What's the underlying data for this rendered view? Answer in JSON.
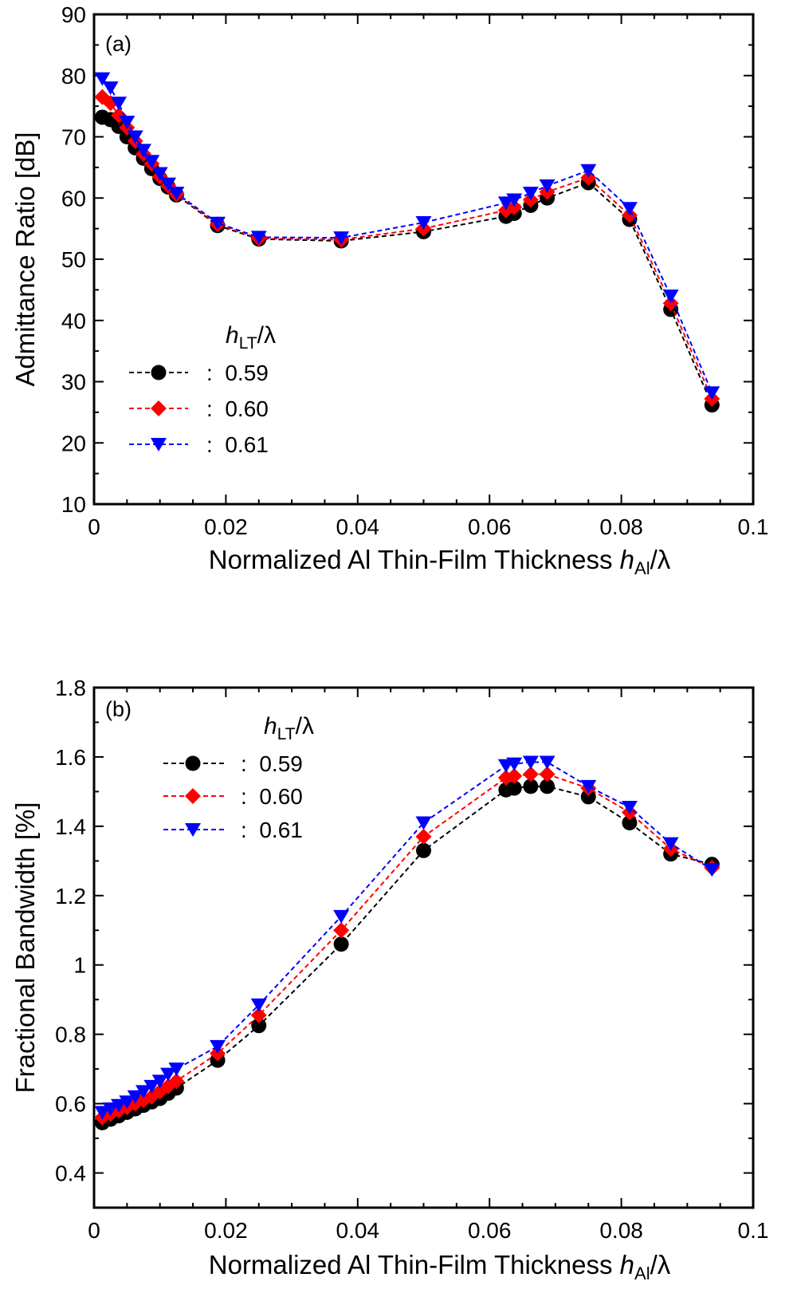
{
  "chart_data": [
    {
      "type": "line",
      "panel_label": "(a)",
      "xlabel_text": "Normalized  Al  Thin-Film  Thickness",
      "xlabel_math": "h",
      "xlabel_math_sub": "Al",
      "xlabel_math_tail": "/λ",
      "ylabel": "Admittance  Ratio  [dB]",
      "xlim": [
        0,
        0.1
      ],
      "ylim": [
        10,
        90
      ],
      "xticks": [
        0,
        0.02,
        0.04,
        0.06,
        0.08,
        0.1
      ],
      "xtick_labels": [
        "0",
        "0.02",
        "0.04",
        "0.06",
        "0.08",
        "0.1"
      ],
      "yticks": [
        10,
        20,
        30,
        40,
        50,
        60,
        70,
        80,
        90
      ],
      "ytick_labels": [
        "10",
        "20",
        "30",
        "40",
        "50",
        "60",
        "70",
        "80",
        "90"
      ],
      "legend_title_main": "h",
      "legend_title_sub": "LT",
      "legend_title_tail": "/λ",
      "x": [
        0.00125,
        0.0025,
        0.00375,
        0.005,
        0.00625,
        0.0075,
        0.00875,
        0.01,
        0.01125,
        0.0125,
        0.01875,
        0.025,
        0.0375,
        0.05,
        0.0625,
        0.06375,
        0.06625,
        0.06875,
        0.075,
        0.08125,
        0.0875,
        0.09375
      ],
      "series": [
        {
          "name": ": 0.59",
          "color": "#000000",
          "marker": "circle",
          "values": [
            73.2,
            72.8,
            71.7,
            70.0,
            68.2,
            66.5,
            64.8,
            63.2,
            61.8,
            60.5,
            55.5,
            53.3,
            53.0,
            54.5,
            57.0,
            57.5,
            58.8,
            60.0,
            62.5,
            56.5,
            41.8,
            26.2
          ]
        },
        {
          "name": ": 0.60",
          "color": "#ff0000",
          "marker": "diamond",
          "values": [
            76.5,
            75.5,
            73.5,
            71.5,
            69.3,
            67.2,
            65.6,
            63.5,
            62.0,
            60.6,
            55.7,
            53.4,
            53.2,
            55.0,
            58.0,
            58.5,
            59.7,
            61.0,
            63.3,
            57.2,
            42.8,
            27.2
          ]
        },
        {
          "name": ": 0.61",
          "color": "#0000ff",
          "marker": "triangle-down",
          "values": [
            79.5,
            78.0,
            75.5,
            72.4,
            70.0,
            67.8,
            66.0,
            64.0,
            62.3,
            60.8,
            55.9,
            53.6,
            53.5,
            56.0,
            59.2,
            59.7,
            60.8,
            62.0,
            64.5,
            58.3,
            44.0,
            28.2
          ]
        }
      ]
    },
    {
      "type": "line",
      "panel_label": "(b)",
      "xlabel_text": "Normalized  Al  Thin-Film  Thickness",
      "xlabel_math": "h",
      "xlabel_math_sub": "Al",
      "xlabel_math_tail": "/λ",
      "ylabel": "Fractional  Bandwidth  [%]",
      "xlim": [
        0,
        0.1
      ],
      "ylim": [
        0.3,
        1.8
      ],
      "xticks": [
        0,
        0.02,
        0.04,
        0.06,
        0.08,
        0.1
      ],
      "xtick_labels": [
        "0",
        "0.02",
        "0.04",
        "0.06",
        "0.08",
        "0.1"
      ],
      "yticks": [
        0.4,
        0.6,
        0.8,
        1.0,
        1.2,
        1.4,
        1.6,
        1.8
      ],
      "ytick_labels": [
        "0.4",
        "0.6",
        "0.8",
        "1",
        "1.2",
        "1.4",
        "1.6",
        "1.8"
      ],
      "legend_title_main": "h",
      "legend_title_sub": "LT",
      "legend_title_tail": "/λ",
      "x": [
        0.00125,
        0.0025,
        0.00375,
        0.005,
        0.00625,
        0.0075,
        0.00875,
        0.01,
        0.01125,
        0.0125,
        0.01875,
        0.025,
        0.0375,
        0.05,
        0.0625,
        0.06375,
        0.06625,
        0.06875,
        0.075,
        0.08125,
        0.0875,
        0.09375
      ],
      "series": [
        {
          "name": ": 0.59",
          "color": "#000000",
          "marker": "circle",
          "values": [
            0.545,
            0.555,
            0.565,
            0.575,
            0.585,
            0.595,
            0.605,
            0.615,
            0.63,
            0.645,
            0.725,
            0.825,
            1.06,
            1.33,
            1.505,
            1.51,
            1.515,
            1.515,
            1.485,
            1.41,
            1.32,
            1.29
          ]
        },
        {
          "name": ": 0.60",
          "color": "#ff0000",
          "marker": "diamond",
          "values": [
            0.56,
            0.57,
            0.58,
            0.59,
            0.6,
            0.61,
            0.62,
            0.635,
            0.65,
            0.665,
            0.745,
            0.855,
            1.1,
            1.37,
            1.54,
            1.545,
            1.55,
            1.55,
            1.51,
            1.44,
            1.335,
            1.28
          ]
        },
        {
          "name": ": 0.61",
          "color": "#0000ff",
          "marker": "triangle-down",
          "values": [
            0.575,
            0.585,
            0.595,
            0.605,
            0.62,
            0.635,
            0.65,
            0.665,
            0.685,
            0.7,
            0.765,
            0.885,
            1.14,
            1.41,
            1.575,
            1.58,
            1.585,
            1.585,
            1.515,
            1.455,
            1.35,
            1.275
          ]
        }
      ]
    }
  ]
}
